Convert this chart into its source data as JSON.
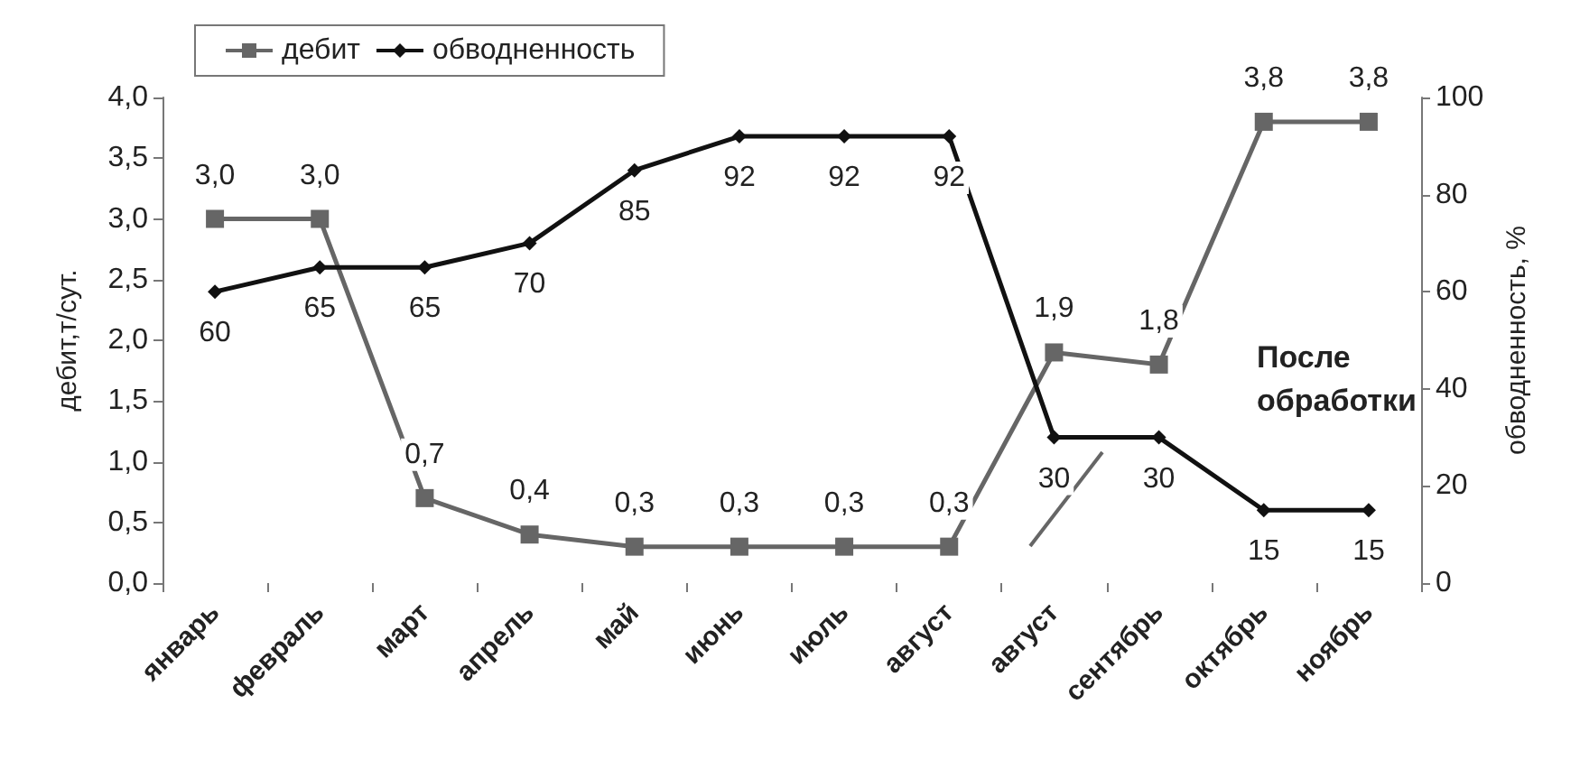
{
  "chart_data": {
    "type": "line",
    "ylabel": "дебит,т/сут.",
    "y2label": "обводненность, %",
    "categories": [
      "январь",
      "февраль",
      "март",
      "апрель",
      "май",
      "июнь",
      "июль",
      "август",
      "август",
      "сентябрь",
      "октябрь",
      "ноябрь"
    ],
    "series": [
      {
        "name": "дебит",
        "color": "#666666",
        "marker": "square",
        "values": [
          3.0,
          3.0,
          0.7,
          0.4,
          0.3,
          0.3,
          0.3,
          0.3,
          1.9,
          1.8,
          3.8,
          3.8
        ],
        "value_labels": [
          "3,0",
          "3,0",
          "0,7",
          "0,4",
          "0,3",
          "0,3",
          "0,3",
          "0,3",
          "1,9",
          "1,8",
          "3,8",
          "3,8"
        ]
      },
      {
        "name": "обводненность",
        "color": "#111111",
        "marker": "diamond",
        "axis": "y2",
        "values": [
          60,
          65,
          65,
          70,
          85,
          92,
          92,
          92,
          30,
          30,
          15,
          15
        ],
        "value_labels": [
          "60",
          "65",
          "65",
          "70",
          "85",
          "92",
          "92",
          "92",
          "30",
          "30",
          "15",
          "15"
        ]
      }
    ],
    "ylim": [
      0,
      4
    ],
    "yticks": [
      {
        "value": 0,
        "label": "0,0"
      },
      {
        "value": 0.5,
        "label": "0,5"
      },
      {
        "value": 1,
        "label": "1,0"
      },
      {
        "value": 1.5,
        "label": "1,5"
      },
      {
        "value": 2,
        "label": "2,0"
      },
      {
        "value": 2.5,
        "label": "2,5"
      },
      {
        "value": 3,
        "label": "3,0"
      },
      {
        "value": 3.5,
        "label": "3,5"
      },
      {
        "value": 4,
        "label": "4,0"
      }
    ],
    "y2lim": [
      0,
      100
    ],
    "y2ticks": [
      0,
      20,
      40,
      60,
      80,
      100
    ],
    "annotations": [
      "После обработки"
    ],
    "grid": false,
    "legend": "top",
    "line_style": "solid"
  }
}
